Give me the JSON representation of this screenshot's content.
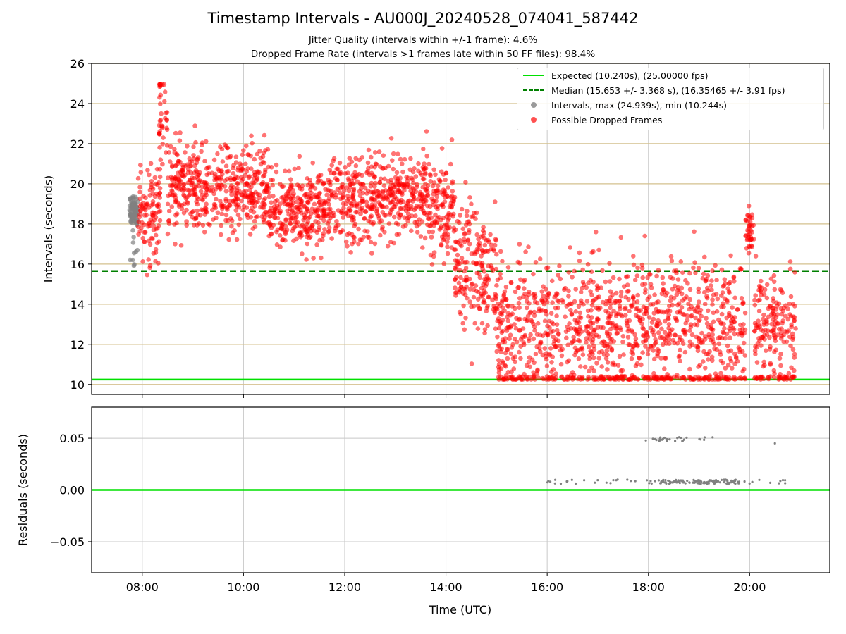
{
  "title": "Timestamp Intervals - AU000J_20240528_074041_587442",
  "subtitle_1": "Jitter Quality (intervals within +/-1 frame): 4.6%",
  "subtitle_2": "Dropped Frame Rate (intervals >1 frames late within 50 FF files): 98.4%",
  "colors": {
    "expected": "#00e000",
    "median": "#008000",
    "intervals": "#808080",
    "dropped": "#ff0000",
    "threshold_lines": "#d4c18e",
    "grid": "#c8c8c8"
  },
  "chart_data": [
    {
      "type": "scatter",
      "ylabel": "Intervals (seconds)",
      "xlim": [
        "07:00",
        "21:35"
      ],
      "ylim": [
        9.5,
        26
      ],
      "yticks": [
        "10",
        "12",
        "14",
        "16",
        "18",
        "20",
        "22",
        "24",
        "26"
      ],
      "grid": "vertical on x ticks; horizontal reference lines at each even y value",
      "legend_placement": "top-right",
      "reference_lines": [
        {
          "label": "Expected (10.240s), (25.00000 fps)",
          "y": 10.24,
          "style": "solid",
          "color": "#00e000"
        },
        {
          "label": "Median (15.653 +/- 3.368 s), (16.35465 +/- 3.91 fps)",
          "y": 15.653,
          "style": "dashed",
          "color": "#008000"
        }
      ],
      "series": [
        {
          "name": "Intervals, max (24.939s), min (10.244s)",
          "color": "#808080",
          "x_range": [
            "07:45",
            "07:55"
          ],
          "y_range": [
            15.4,
            19.4
          ],
          "approx_center": 18.6
        },
        {
          "name": "Possible Dropped Frames",
          "color": "#ff0000",
          "segments": [
            {
              "x_range": [
                "07:55",
                "08:22"
              ],
              "y_center": 18.6,
              "y_spread": 1.2
            },
            {
              "x_range": [
                "08:20",
                "08:30"
              ],
              "y_center": 23.4,
              "y_spread": 1.5
            },
            {
              "x_range": [
                "08:30",
                "10:30"
              ],
              "y_center": 19.7,
              "y_spread": 1.1
            },
            {
              "x_range": [
                "10:30",
                "11:40"
              ],
              "y_center": 18.8,
              "y_spread": 1.0
            },
            {
              "x_range": [
                "11:40",
                "13:40"
              ],
              "y_center": 19.4,
              "y_spread": 1.1
            },
            {
              "x_range": [
                "13:40",
                "14:10"
              ],
              "y_center": 18.6,
              "y_spread": 1.2
            },
            {
              "x_range": [
                "14:10",
                "15:00"
              ],
              "y_center": 15.8,
              "y_spread": 1.5
            },
            {
              "x_range": [
                "15:00",
                "19:55"
              ],
              "y_center": 13.0,
              "y_spread": 1.6
            },
            {
              "x_range": [
                "19:55",
                "20:05"
              ],
              "y_center": 17.7,
              "y_spread": 0.6
            },
            {
              "x_range": [
                "20:05",
                "20:55"
              ],
              "y_center": 13.0,
              "y_spread": 1.5
            }
          ]
        }
      ]
    },
    {
      "type": "scatter",
      "xlabel": "Time (UTC)",
      "ylabel": "Residuals (seconds)",
      "xticks": [
        "08:00",
        "10:00",
        "12:00",
        "14:00",
        "16:00",
        "18:00",
        "20:00"
      ],
      "xlim": [
        "07:00",
        "21:35"
      ],
      "ylim": [
        -0.08,
        0.08
      ],
      "yticks": [
        "−0.05",
        "0.00",
        "0.05"
      ],
      "grid": "on",
      "reference_lines": [
        {
          "y": 0.0,
          "style": "solid",
          "color": "#00e000"
        }
      ],
      "series": [
        {
          "color": "#808080",
          "bands": [
            {
              "x_range": [
                "15:55",
                "20:55"
              ],
              "y": 0.008
            },
            {
              "x_range": [
                "17:55",
                "19:20"
              ],
              "y": 0.049
            },
            {
              "x": "20:30",
              "y": 0.045
            }
          ]
        }
      ]
    }
  ]
}
